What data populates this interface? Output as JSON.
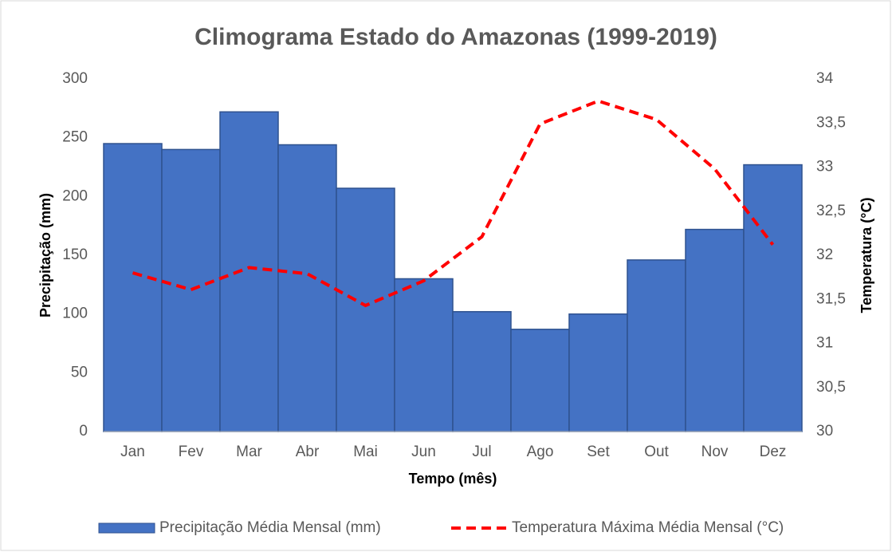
{
  "chart_data": {
    "type": "bar_line",
    "title": "Climograma Estado do Amazonas (1999-2019)",
    "x_label": "Tempo (mês)",
    "y_label": "Precipitação (mm)",
    "y2_label": "Temperatura (°C)",
    "categories": [
      "Jan",
      "Fev",
      "Mar",
      "Abr",
      "Mai",
      "Jun",
      "Jul",
      "Ago",
      "Set",
      "Out",
      "Nov",
      "Dez"
    ],
    "series": [
      {
        "name": "Precipitação Média Mensal (mm)",
        "type": "bar",
        "color": "#4472c4",
        "values": [
          245,
          240,
          272,
          244,
          207,
          130,
          102,
          87,
          100,
          146,
          172,
          227
        ]
      },
      {
        "name": "Temperatura Máxima Média Mensal (°C)",
        "type": "line",
        "axis": "y2",
        "color": "#ff0000",
        "values": [
          31.8,
          31.61,
          31.86,
          31.79,
          31.43,
          31.71,
          32.21,
          33.49,
          33.75,
          33.54,
          32.98,
          32.12
        ]
      }
    ],
    "ylim": [
      0,
      300
    ],
    "yticks": [
      0,
      50,
      100,
      150,
      200,
      250,
      300
    ],
    "y2lim": [
      30,
      34
    ],
    "y2ticks": [
      30,
      {
        "value": 30.5,
        "label": "30,5"
      },
      31,
      {
        "value": 31.5,
        "label": "31,5"
      },
      32,
      {
        "value": 32.5,
        "label": "32,5"
      },
      33,
      {
        "value": 33.5,
        "label": "33,5"
      },
      34
    ],
    "legend": "bottom"
  }
}
